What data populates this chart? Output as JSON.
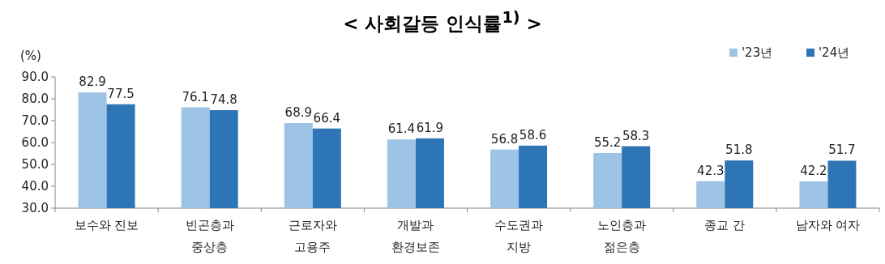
{
  "chart_data": {
    "type": "bar",
    "title": "< 사회갈등 인식률$^{1)}$ >",
    "ylabel": "(%)",
    "categories": [
      "보수와 진보",
      "빈곤층과\n중상층",
      "근로자와\n고용주",
      "개발과\n환경보존",
      "수도권과\n지방",
      "노인층과\n젊은층",
      "종교 간",
      "남자와 여자"
    ],
    "series": [
      {
        "name": "'23년",
        "color": "#9dc3e6",
        "values": [
          82.9,
          76.1,
          68.9,
          61.4,
          56.8,
          55.2,
          42.3,
          42.2
        ]
      },
      {
        "name": "'24년",
        "color": "#2e75b6",
        "values": [
          77.5,
          74.8,
          66.4,
          61.9,
          58.6,
          58.3,
          51.8,
          51.7
        ]
      }
    ],
    "ylim": [
      30,
      90
    ],
    "yticks": [
      {
        "value": 30,
        "label": "30.0"
      },
      {
        "value": 40,
        "label": "40.0"
      },
      {
        "value": 50,
        "label": "50.0"
      },
      {
        "value": 60,
        "label": "60.0"
      },
      {
        "value": 70,
        "label": "70.0"
      },
      {
        "value": 80,
        "label": "80.0"
      },
      {
        "value": 90,
        "label": "90.0"
      }
    ],
    "data_labels": true,
    "legend": "top right",
    "grid": false
  }
}
